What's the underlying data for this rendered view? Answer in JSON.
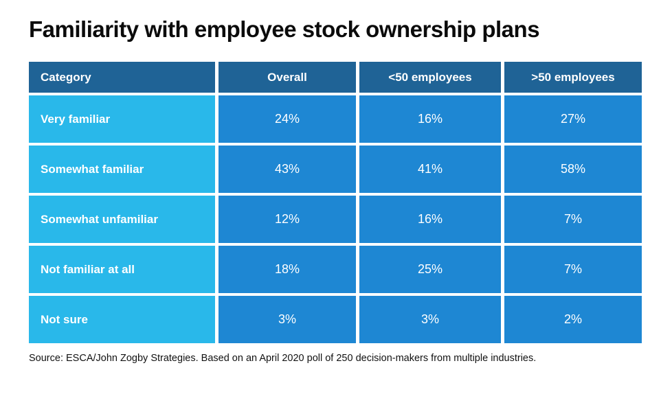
{
  "title": "Familiarity with employee stock ownership plans",
  "source_note": "Source: ESCA/John Zogby Strategies. Based on an April 2020 poll of 250 decision-makers from multiple industries.",
  "colors": {
    "header_bg": "#1F6396",
    "category_bg": "#29B8EA",
    "value_bg": "#1E87D3",
    "cell_text": "#FFFFFF",
    "title_text": "#0B0B0B",
    "page_bg": "#FFFFFF"
  },
  "chart_data": {
    "type": "table",
    "title": "Familiarity with employee stock ownership plans",
    "columns": [
      "Category",
      "Overall",
      "<50 employees",
      ">50 employees"
    ],
    "rows": [
      {
        "category": "Very familiar",
        "values": [
          "24%",
          "16%",
          "27%"
        ]
      },
      {
        "category": "Somewhat familiar",
        "values": [
          "43%",
          "41%",
          "58%"
        ]
      },
      {
        "category": "Somewhat unfamiliar",
        "values": [
          "12%",
          "16%",
          "7%"
        ]
      },
      {
        "category": "Not familiar at all",
        "values": [
          "18%",
          "25%",
          "7%"
        ]
      },
      {
        "category": "Not sure",
        "values": [
          "3%",
          "3%",
          "2%"
        ]
      }
    ],
    "legend": null,
    "grid": "white gaps between solid cells"
  }
}
